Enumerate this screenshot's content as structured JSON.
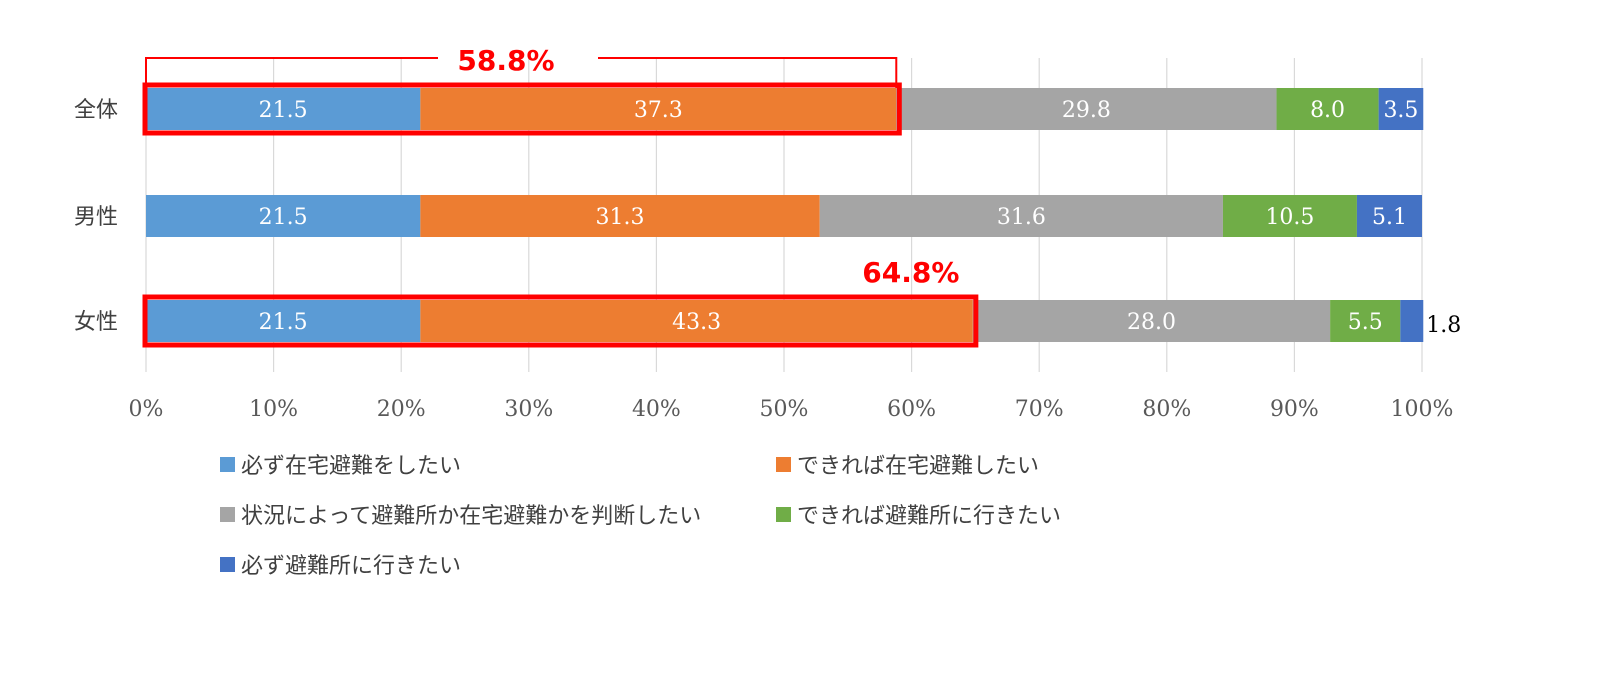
{
  "chart_data": {
    "type": "bar",
    "orientation": "horizontal",
    "stacked": "percent",
    "categories": [
      "全体",
      "男性",
      "女性"
    ],
    "series": [
      {
        "name": "必ず在宅避難をしたい",
        "color": "#5b9bd5",
        "values": [
          21.5,
          21.5,
          21.5
        ]
      },
      {
        "name": "できれば在宅避難したい",
        "color": "#ed7d31",
        "values": [
          37.3,
          31.3,
          43.3
        ]
      },
      {
        "name": "状況によって避難所か在宅避難かを判断したい",
        "color": "#a5a5a5",
        "values": [
          29.8,
          31.6,
          28.0
        ]
      },
      {
        "name": "できれば避難所に行きたい",
        "color": "#70ad47",
        "values": [
          8.0,
          10.5,
          5.5
        ]
      },
      {
        "name": "必ず避難所に行きたい",
        "color": "#4472c4",
        "values": [
          3.5,
          5.1,
          1.8
        ]
      }
    ],
    "data_labels": [
      [
        "21.5",
        "37.3",
        "29.8",
        "8.0",
        "3.5"
      ],
      [
        "21.5",
        "31.3",
        "31.6",
        "10.5",
        "5.1"
      ],
      [
        "21.5",
        "43.3",
        "28.0",
        "5.5",
        "1.8"
      ]
    ],
    "xlim": [
      0,
      100
    ],
    "x_ticks": [
      "0%",
      "10%",
      "20%",
      "30%",
      "40%",
      "50%",
      "60%",
      "70%",
      "80%",
      "90%",
      "100%"
    ],
    "grid": true,
    "legend_position": "bottom",
    "title": "",
    "xlabel": "",
    "ylabel": "",
    "annotations": [
      {
        "category_index": 0,
        "text": "58.8%",
        "value": 58.8,
        "style": "bracket",
        "color": "#ff0000"
      },
      {
        "category_index": 2,
        "text": "64.8%",
        "value": 64.8,
        "style": "label",
        "color": "#ff0000"
      }
    ]
  }
}
